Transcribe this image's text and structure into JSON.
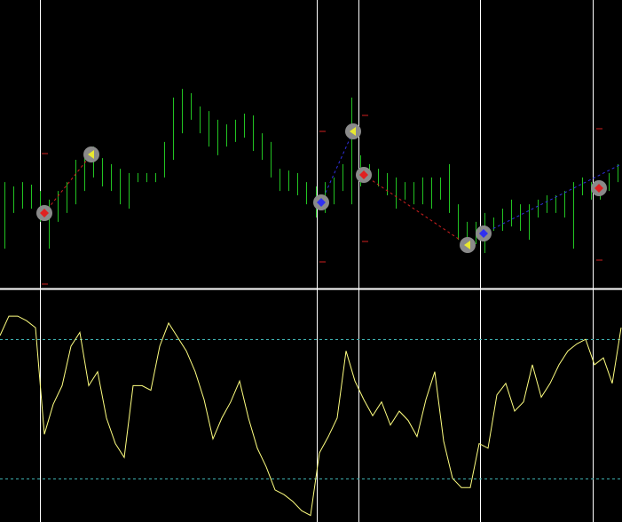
{
  "chart_data": [
    {
      "type": "range-bar",
      "color": "#22c422",
      "ylim": [
        0,
        100
      ],
      "high": [
        36.9,
        35.4,
        36.9,
        36,
        33.8,
        30.8,
        33.8,
        36.9,
        44.6,
        46.2,
        49.2,
        45.2,
        43.1,
        41.5,
        40,
        40,
        40,
        40,
        50.8,
        66.2,
        69.2,
        67.7,
        63.1,
        61.5,
        58.5,
        56.9,
        58.5,
        60.6,
        60,
        53.8,
        50.8,
        41.5,
        40.9,
        40,
        36.9,
        35.4,
        36.9,
        38.5,
        43.1,
        66.2,
        46.2,
        43.1,
        41.5,
        40,
        38.5,
        36.9,
        36.9,
        38.5,
        38.5,
        38.5,
        43.1,
        29.2,
        23.1,
        23.1,
        26.2,
        24.6,
        27.7,
        30.8,
        29.2,
        29.2,
        30.8,
        32.3,
        32.3,
        33.8,
        36.9,
        38.5,
        36.9,
        36.9,
        40,
        43.1
      ],
      "low": [
        13.8,
        26.2,
        27.7,
        27.7,
        23.1,
        13.8,
        23.1,
        26.2,
        29.2,
        33.8,
        38.5,
        35.4,
        33.8,
        29.2,
        27.7,
        36.9,
        36.9,
        36.9,
        38.5,
        44.6,
        53.8,
        58.5,
        53.8,
        49.2,
        46.2,
        49.2,
        50.8,
        52.3,
        47.7,
        44.6,
        38.5,
        33.8,
        33.8,
        32.3,
        29.2,
        24.6,
        26.2,
        29.2,
        33.8,
        29.2,
        35.4,
        38.5,
        35.4,
        32.3,
        27.7,
        30.8,
        29.2,
        29.2,
        27.7,
        30.8,
        26.2,
        16.9,
        12.3,
        15.4,
        12.3,
        20,
        20,
        21.5,
        20,
        16.9,
        24.6,
        26.2,
        26.2,
        24.6,
        13.8,
        32.3,
        30.8,
        30.8,
        33.8,
        36.9
      ]
    },
    {
      "type": "line",
      "color": "#ffff80",
      "ylim": [
        0,
        100
      ],
      "levels": [
        20,
        80
      ],
      "level_color": "#3fb0b0",
      "values": [
        81.6,
        90,
        90,
        88,
        85,
        39,
        52,
        60,
        77,
        83,
        60,
        66,
        46,
        35,
        29,
        60,
        60,
        58,
        77,
        87,
        81,
        75,
        66,
        54,
        37,
        46,
        53,
        62,
        46,
        33,
        25,
        15,
        13,
        10,
        6,
        4,
        31,
        38,
        46,
        75,
        62,
        54,
        47,
        53,
        43,
        49,
        45,
        38,
        54,
        66,
        36,
        20,
        16,
        16,
        35,
        33,
        56,
        61,
        49,
        53,
        69,
        55,
        61,
        69,
        75,
        78,
        80,
        69,
        72,
        61,
        85
      ]
    }
  ]
}
